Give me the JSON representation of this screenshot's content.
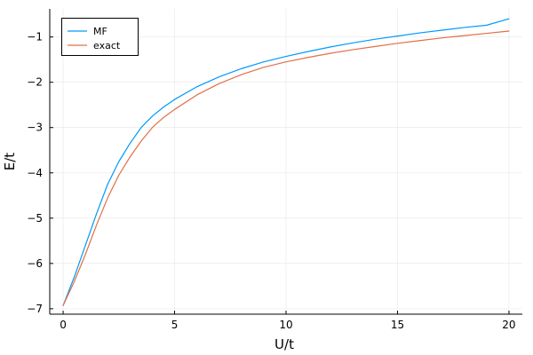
{
  "chart_data": {
    "type": "line",
    "title": "",
    "xlabel": "U/t",
    "ylabel": "E/t",
    "xlim": [
      -0.6,
      20.6
    ],
    "ylim": [
      -7.12,
      -0.38
    ],
    "xticks": [
      0,
      5,
      10,
      15,
      20
    ],
    "xtick_labels": [
      "0",
      "5",
      "10",
      "15",
      "20"
    ],
    "yticks": [
      -7,
      -6,
      -5,
      -4,
      -3,
      -2,
      -1
    ],
    "ytick_labels": [
      "−7",
      "−6",
      "−5",
      "−4",
      "−3",
      "−2",
      "−1"
    ],
    "grid": true,
    "legend_position": "top-left",
    "x": [
      0,
      0.5,
      1,
      1.5,
      2,
      2.5,
      3,
      3.5,
      4,
      4.5,
      5,
      6,
      7,
      8,
      9,
      10,
      11,
      12,
      13,
      14,
      15,
      16,
      17,
      18,
      19,
      20
    ],
    "series": [
      {
        "name": "MF",
        "color": "#009AFA",
        "values": [
          -6.93,
          -6.3,
          -5.6,
          -4.9,
          -4.25,
          -3.75,
          -3.35,
          -3.0,
          -2.75,
          -2.55,
          -2.38,
          -2.1,
          -1.88,
          -1.7,
          -1.55,
          -1.43,
          -1.32,
          -1.22,
          -1.13,
          -1.05,
          -0.98,
          -0.91,
          -0.85,
          -0.79,
          -0.74,
          -0.6
        ]
      },
      {
        "name": "exact",
        "color": "#E26F46",
        "values": [
          -6.93,
          -6.4,
          -5.8,
          -5.15,
          -4.55,
          -4.05,
          -3.65,
          -3.3,
          -3.0,
          -2.78,
          -2.6,
          -2.28,
          -2.03,
          -1.83,
          -1.67,
          -1.55,
          -1.45,
          -1.36,
          -1.28,
          -1.21,
          -1.14,
          -1.08,
          -1.02,
          -0.97,
          -0.92,
          -0.87
        ]
      }
    ]
  }
}
